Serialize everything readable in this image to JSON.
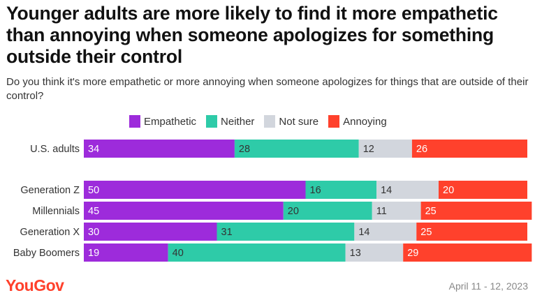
{
  "title": "Younger adults are more likely to find it more empathetic than annoying when someone apologizes for something outside their control",
  "subtitle": "Do you think it's more empathetic or more annoying when someone apologizes for things that are outside of their control?",
  "source_date": "April 11 - 12, 2023",
  "logo_text": "YouGov",
  "colors": {
    "brand": "#ff412c"
  },
  "chart_data": {
    "type": "bar",
    "orientation": "horizontal",
    "stacked": true,
    "xlim": [
      0,
      100
    ],
    "legend_position": "top",
    "categories": [
      "U.S. adults",
      "Generation Z",
      "Millennials",
      "Generation X",
      "Baby Boomers"
    ],
    "series": [
      {
        "name": "Empathetic",
        "color": "#9d2bdb",
        "values": [
          34,
          50,
          45,
          30,
          19
        ]
      },
      {
        "name": "Neither",
        "color": "#2ecba8",
        "values": [
          28,
          16,
          20,
          31,
          40
        ]
      },
      {
        "name": "Not sure",
        "color": "#d2d6dd",
        "values": [
          12,
          14,
          11,
          14,
          13
        ]
      },
      {
        "name": "Annoying",
        "color": "#ff412c",
        "values": [
          26,
          20,
          25,
          25,
          29
        ]
      }
    ]
  }
}
